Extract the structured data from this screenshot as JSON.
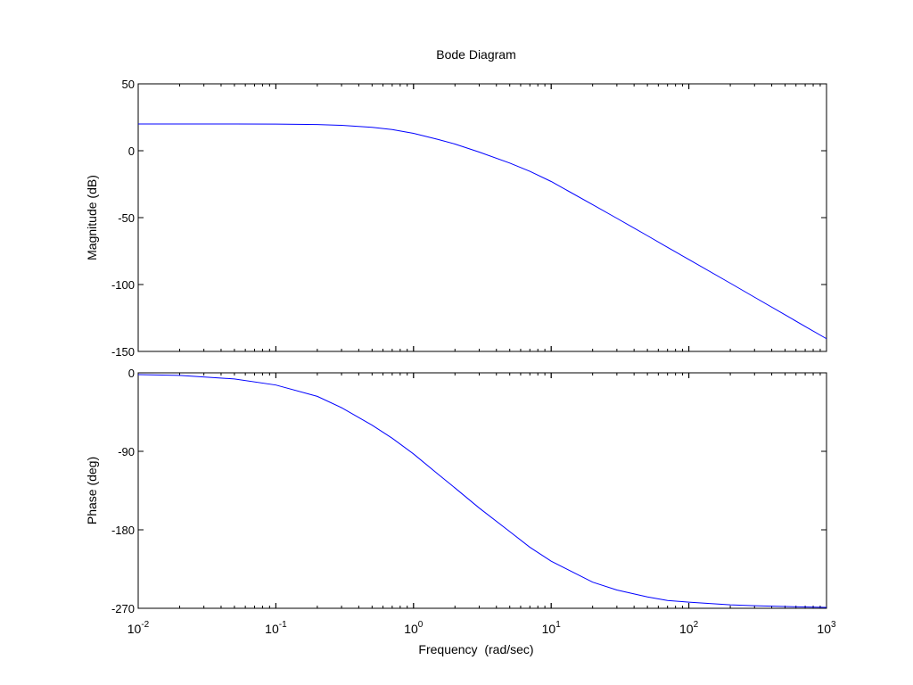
{
  "chart_data": {
    "type": "line",
    "title": "Bode Diagram",
    "xlabel": "Frequency  (rad/sec)",
    "x_scale": "log",
    "xlim": [
      0.01,
      1000
    ],
    "x_ticks": [
      {
        "value": 0.01,
        "base": "10",
        "exp": "-2"
      },
      {
        "value": 0.1,
        "base": "10",
        "exp": "-1"
      },
      {
        "value": 1,
        "base": "10",
        "exp": "0"
      },
      {
        "value": 10,
        "base": "10",
        "exp": "1"
      },
      {
        "value": 100,
        "base": "10",
        "exp": "2"
      },
      {
        "value": 1000,
        "base": "10",
        "exp": "3"
      }
    ],
    "line_color": "#0000ff",
    "grid": false,
    "panels": [
      {
        "id": "magnitude",
        "ylabel": "Magnitude (dB)",
        "ylim": [
          -150,
          50
        ],
        "y_ticks": [
          {
            "value": 50,
            "label": "50"
          },
          {
            "value": 0,
            "label": "0"
          },
          {
            "value": -50,
            "label": "-50"
          },
          {
            "value": -100,
            "label": "-100"
          },
          {
            "value": -150,
            "label": "-150"
          }
        ],
        "series": [
          {
            "x": [
              0.01,
              0.02,
              0.05,
              0.1,
              0.2,
              0.3,
              0.5,
              0.7,
              1,
              1.5,
              2,
              3,
              5,
              7,
              10,
              20,
              30,
              50,
              70,
              100,
              200,
              300,
              500,
              700,
              1000
            ],
            "y": [
              20,
              20,
              20,
              19.9,
              19.6,
              19.0,
              17.5,
              15.8,
              13.0,
              8.5,
              5.0,
              -1.0,
              -9.2,
              -15.4,
              -23.0,
              -40.3,
              -50.5,
              -63.5,
              -72.2,
              -81.3,
              -99.0,
              -109.5,
              -122.6,
              -131.4,
              -140.5
            ]
          }
        ]
      },
      {
        "id": "phase",
        "ylabel": "Phase (deg)",
        "ylim": [
          -270,
          0
        ],
        "y_ticks": [
          {
            "value": 0,
            "label": "0"
          },
          {
            "value": -90,
            "label": "-90"
          },
          {
            "value": -180,
            "label": "-180"
          },
          {
            "value": -270,
            "label": "-270"
          }
        ],
        "series": [
          {
            "x": [
              0.01,
              0.02,
              0.05,
              0.1,
              0.2,
              0.3,
              0.5,
              0.7,
              1,
              1.5,
              2,
              3,
              5,
              7,
              10,
              20,
              30,
              50,
              70,
              100,
              200,
              300,
              500,
              700,
              1000
            ],
            "y": [
              -2,
              -3,
              -7,
              -14,
              -27,
              -40,
              -60,
              -75,
              -93,
              -116,
              -132,
              -155,
              -182,
              -200,
              -216,
              -240,
              -249,
              -257,
              -261,
              -263,
              -266,
              -267,
              -268,
              -268.5,
              -269
            ]
          }
        ]
      }
    ]
  }
}
